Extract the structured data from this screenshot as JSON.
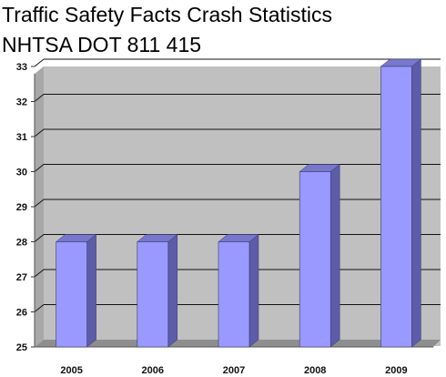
{
  "title_lines": [
    "Traffic Safety Facts Crash Statistics",
    "NHTSA  DOT 811 415"
  ],
  "chart_data": {
    "type": "bar",
    "title": "Traffic Safety Facts Crash Statistics NHTSA  DOT 811 415",
    "categories": [
      "2005",
      "2006",
      "2007",
      "2008",
      "2009"
    ],
    "values": [
      28,
      28,
      28,
      30,
      33
    ],
    "xlabel": "",
    "ylabel": "",
    "ylim": [
      25,
      33
    ],
    "yticks": [
      25,
      26,
      27,
      28,
      29,
      30,
      31,
      32,
      33
    ],
    "grid": true,
    "legend": "none",
    "colors": {
      "bar_front": "#9999ff",
      "bar_side": "#5c5ca8",
      "bar_top": "#7777cc",
      "plot_back": "#c0c0c0",
      "plot_floor": "#8e8e8e",
      "gridline": "#111111"
    }
  }
}
